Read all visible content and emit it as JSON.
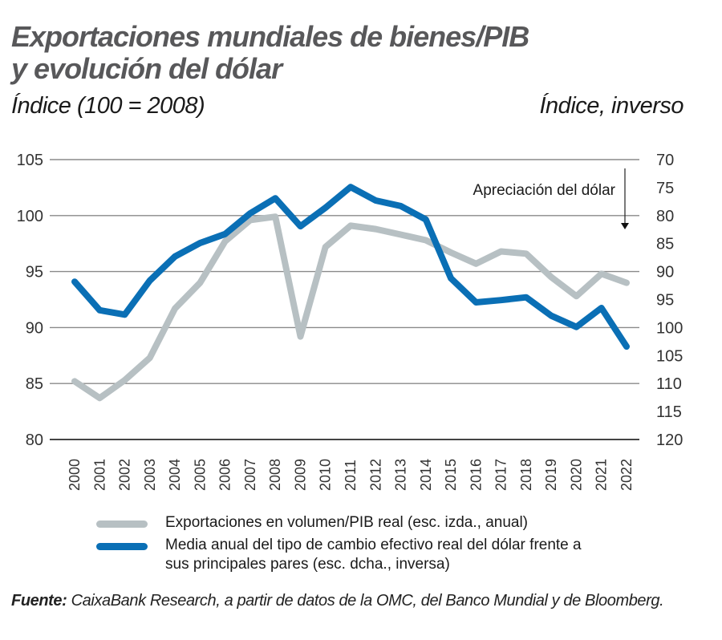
{
  "header": {
    "title_line1": "Exportaciones mundiales de bienes/PIB",
    "title_line2": "y evolución del dólar",
    "left_axis_unit": "Índice (100 = 2008)",
    "right_axis_unit": "Índice, inverso"
  },
  "annotation": {
    "text": "Apreciación del dólar",
    "arrow": "arrow-down-icon"
  },
  "legend": [
    {
      "label": "Exportaciones en volumen/PIB real (esc. izda., anual)",
      "color": "#b7c0c3"
    },
    {
      "label": "Media anual del tipo de cambio efectivo real del dólar frente a sus principales pares (esc. dcha., inversa)",
      "color": "#0a6fb5"
    }
  ],
  "source": {
    "label": "Fuente:",
    "text": " CaixaBank Research, a partir de datos de la OMC, del Banco Mundial y de Bloomberg."
  },
  "chart_data": {
    "type": "line",
    "title": "Exportaciones mundiales de bienes/PIB y evolución del dólar",
    "xlabel": "",
    "ylabel": "Índice (100 = 2008)",
    "ylabel_right": "Índice, inverso",
    "x": [
      "2000",
      "2001",
      "2002",
      "2003",
      "2004",
      "2005",
      "2006",
      "2007",
      "2008",
      "2009",
      "2010",
      "2011",
      "2012",
      "2013",
      "2014",
      "2015",
      "2016",
      "2017",
      "2018",
      "2019",
      "2020",
      "2021",
      "2022"
    ],
    "ylim": [
      80,
      105
    ],
    "yticks": [
      80,
      85,
      90,
      95,
      100,
      105
    ],
    "ylim_right": [
      70,
      120
    ],
    "yticks_right": [
      70,
      75,
      80,
      85,
      90,
      95,
      100,
      105,
      110,
      115,
      120
    ],
    "right_axis_inverted": true,
    "grid": true,
    "legend_position": "bottom",
    "series": [
      {
        "name": "Exportaciones en volumen/PIB real (esc. izda., anual)",
        "axis": "left",
        "color": "#b7c0c3",
        "values": [
          85.2,
          83.7,
          85.3,
          87.3,
          91.7,
          94.0,
          97.7,
          99.6,
          99.9,
          89.2,
          97.2,
          99.1,
          98.8,
          98.3,
          97.8,
          96.7,
          95.7,
          96.8,
          96.6,
          94.5,
          92.8,
          94.8,
          94.0
        ]
      },
      {
        "name": "Media anual del tipo de cambio efectivo real del dólar frente a sus principales pares (esc. dcha., inversa)",
        "axis": "right",
        "color": "#0a6fb5",
        "values": [
          91.8,
          96.9,
          97.7,
          91.6,
          87.3,
          84.9,
          83.3,
          79.6,
          76.9,
          81.9,
          78.6,
          74.9,
          77.3,
          78.3,
          80.7,
          91.2,
          95.5,
          95.1,
          94.6,
          97.9,
          99.9,
          96.5,
          103.4
        ]
      }
    ],
    "annotations": [
      "Apreciación del dólar"
    ]
  }
}
